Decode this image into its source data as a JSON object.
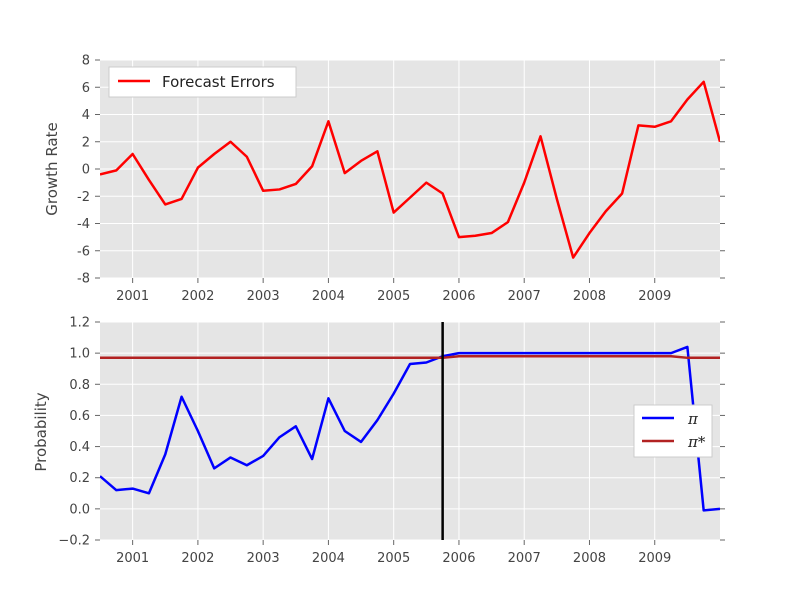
{
  "chart_data": [
    {
      "type": "line",
      "ylabel": "Growth Rate",
      "xlim": [
        2000.5,
        2010.0
      ],
      "ylim": [
        -8,
        8
      ],
      "yticks": [
        -8,
        -6,
        -4,
        -2,
        0,
        2,
        4,
        6,
        8
      ],
      "xticks": [
        2001,
        2002,
        2003,
        2004,
        2005,
        2006,
        2007,
        2008,
        2009
      ],
      "grid": true,
      "legend_position": "top-left",
      "series": [
        {
          "name": "Forecast Errors",
          "color": "#ff0000",
          "x": [
            2000.5,
            2000.75,
            2001.0,
            2001.25,
            2001.5,
            2001.75,
            2002.0,
            2002.25,
            2002.5,
            2002.75,
            2003.0,
            2003.25,
            2003.5,
            2003.75,
            2004.0,
            2004.25,
            2004.5,
            2004.75,
            2005.0,
            2005.25,
            2005.5,
            2005.75,
            2006.0,
            2006.25,
            2006.5,
            2006.75,
            2007.0,
            2007.25,
            2007.5,
            2007.75,
            2008.0,
            2008.25,
            2008.5,
            2008.75,
            2009.0,
            2009.25,
            2009.5,
            2009.75,
            2010.0
          ],
          "values": [
            -0.4,
            -0.1,
            1.1,
            -0.8,
            -2.6,
            -2.2,
            0.1,
            1.1,
            2.0,
            0.9,
            -1.6,
            -1.5,
            -1.1,
            0.2,
            3.5,
            -0.3,
            0.6,
            1.3,
            -3.2,
            -2.1,
            -1.0,
            -1.8,
            -5.0,
            -4.9,
            -4.7,
            -3.9,
            -1.0,
            2.4,
            -2.2,
            -6.5,
            -4.7,
            -3.1,
            -1.8,
            3.2,
            3.1,
            3.5,
            5.1,
            6.4,
            2.0
          ]
        }
      ]
    },
    {
      "type": "line",
      "ylabel": "Probability",
      "xlim": [
        2000.5,
        2010.0
      ],
      "ylim": [
        -0.2,
        1.2
      ],
      "yticks": [
        -0.2,
        0.0,
        0.2,
        0.4,
        0.6,
        0.8,
        1.0,
        1.2
      ],
      "ytick_labels": [
        "−0.2",
        "0.0",
        "0.2",
        "0.4",
        "0.6",
        "0.8",
        "1.0",
        "1.2"
      ],
      "xticks": [
        2001,
        2002,
        2003,
        2004,
        2005,
        2006,
        2007,
        2008,
        2009
      ],
      "grid": true,
      "legend_position": "center-right",
      "vline": {
        "x": 2005.75,
        "color": "#000000"
      },
      "series": [
        {
          "name": "π",
          "color": "#0000ff",
          "x": [
            2000.5,
            2000.75,
            2001.0,
            2001.25,
            2001.5,
            2001.75,
            2002.0,
            2002.25,
            2002.5,
            2002.75,
            2003.0,
            2003.25,
            2003.5,
            2003.75,
            2004.0,
            2004.25,
            2004.5,
            2004.75,
            2005.0,
            2005.25,
            2005.5,
            2005.75,
            2006.0,
            2006.25,
            2006.5,
            2006.75,
            2007.0,
            2007.25,
            2007.5,
            2007.75,
            2008.0,
            2008.25,
            2008.5,
            2008.75,
            2009.0,
            2009.25,
            2009.5,
            2009.75,
            2010.0
          ],
          "values": [
            0.21,
            0.12,
            0.13,
            0.1,
            0.35,
            0.72,
            0.5,
            0.26,
            0.33,
            0.28,
            0.34,
            0.46,
            0.53,
            0.32,
            0.71,
            0.5,
            0.43,
            0.57,
            0.74,
            0.93,
            0.94,
            0.98,
            1.0,
            1.0,
            1.0,
            1.0,
            1.0,
            1.0,
            1.0,
            1.0,
            1.0,
            1.0,
            1.0,
            1.0,
            1.0,
            1.0,
            1.04,
            -0.01,
            0.0
          ]
        },
        {
          "name": "π*",
          "color": "#b22222",
          "x": [
            2000.5,
            2005.75,
            2006.0,
            2009.25,
            2009.5,
            2010.0
          ],
          "values": [
            0.97,
            0.97,
            0.98,
            0.98,
            0.97,
            0.97
          ]
        }
      ]
    }
  ]
}
